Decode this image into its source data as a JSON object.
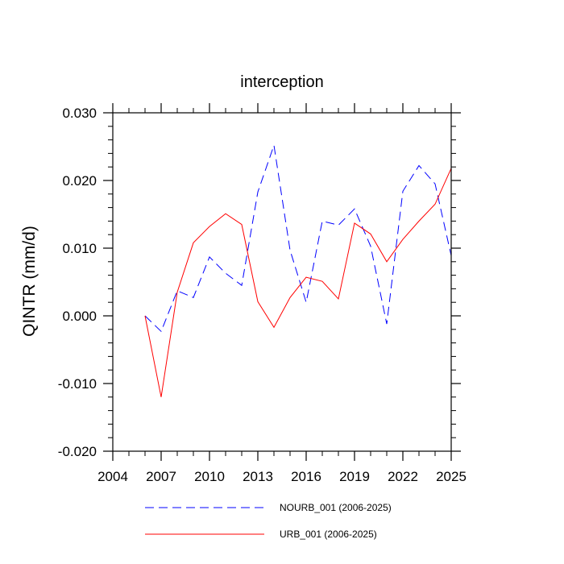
{
  "chart_data": {
    "type": "line",
    "title": "interception",
    "xlabel": "",
    "ylabel": "QINTR  (mm/d)",
    "xlim": [
      2004,
      2025
    ],
    "ylim": [
      -0.02,
      0.03
    ],
    "x_ticks": [
      2004,
      2007,
      2010,
      2013,
      2016,
      2019,
      2022,
      2025
    ],
    "x_tick_labels": [
      "2004",
      "2007",
      "2010",
      "2013",
      "2016",
      "2019",
      "2022",
      "2025"
    ],
    "y_ticks": [
      -0.02,
      -0.01,
      0.0,
      0.01,
      0.02,
      0.03
    ],
    "y_tick_labels": [
      "-0.020",
      "-0.010",
      "0.000",
      "0.010",
      "0.020",
      "0.030"
    ],
    "x": [
      2006,
      2007,
      2008,
      2009,
      2010,
      2011,
      2012,
      2013,
      2014,
      2015,
      2016,
      2017,
      2018,
      2019,
      2020,
      2021,
      2022,
      2023,
      2024,
      2025
    ],
    "series": [
      {
        "name": "NOURB_001 (2006-2025)",
        "color": "#0000ff",
        "style": "dashed",
        "values": [
          0.0,
          -0.0023,
          0.0037,
          0.0027,
          0.0087,
          0.0063,
          0.0045,
          0.0183,
          0.0252,
          0.0097,
          0.002,
          0.014,
          0.0134,
          0.0158,
          0.0103,
          -0.0012,
          0.0184,
          0.0222,
          0.0195,
          0.0089
        ]
      },
      {
        "name": "URB_001 (2006-2025)",
        "color": "#ff0000",
        "style": "solid",
        "values": [
          0.0,
          -0.012,
          0.0035,
          0.0108,
          0.0132,
          0.0151,
          0.0135,
          0.0021,
          -0.0017,
          0.0027,
          0.0057,
          0.0051,
          0.0025,
          0.0137,
          0.0121,
          0.008,
          0.0113,
          0.014,
          0.0165,
          0.0218
        ]
      }
    ],
    "legend_position": "bottom"
  }
}
